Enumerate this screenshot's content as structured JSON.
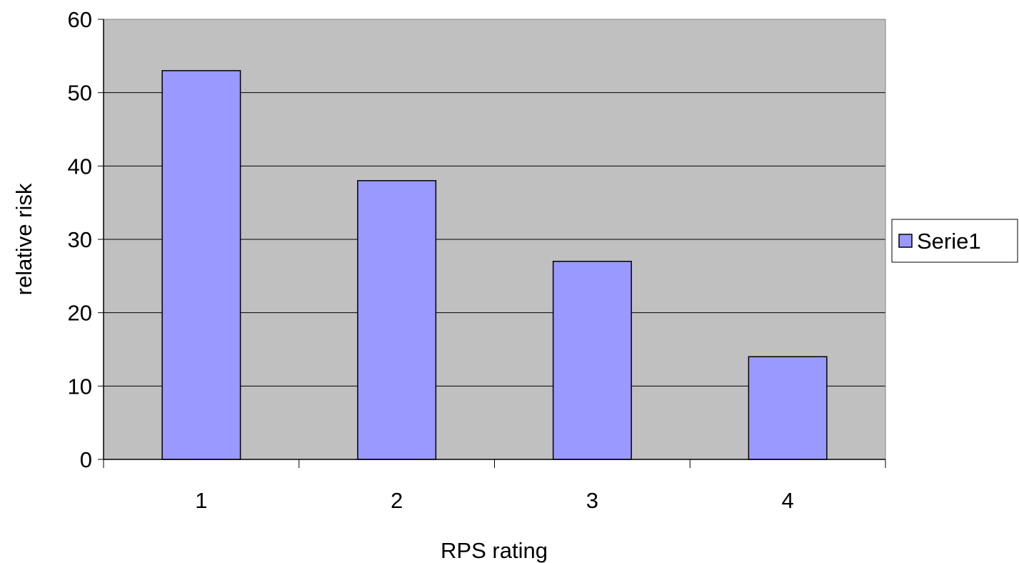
{
  "chart_data": {
    "type": "bar",
    "title": "",
    "xlabel": "RPS rating",
    "ylabel": "relative risk",
    "categories": [
      "1",
      "2",
      "3",
      "4"
    ],
    "series": [
      {
        "name": "Serie1",
        "values": [
          53,
          38,
          27,
          14
        ],
        "color": "#9999FF"
      }
    ],
    "ylim": [
      0,
      60
    ],
    "yticks": [
      0,
      10,
      20,
      30,
      40,
      50,
      60
    ],
    "grid": true,
    "plot_background": "#C0C0C0",
    "legend_position": "right"
  }
}
